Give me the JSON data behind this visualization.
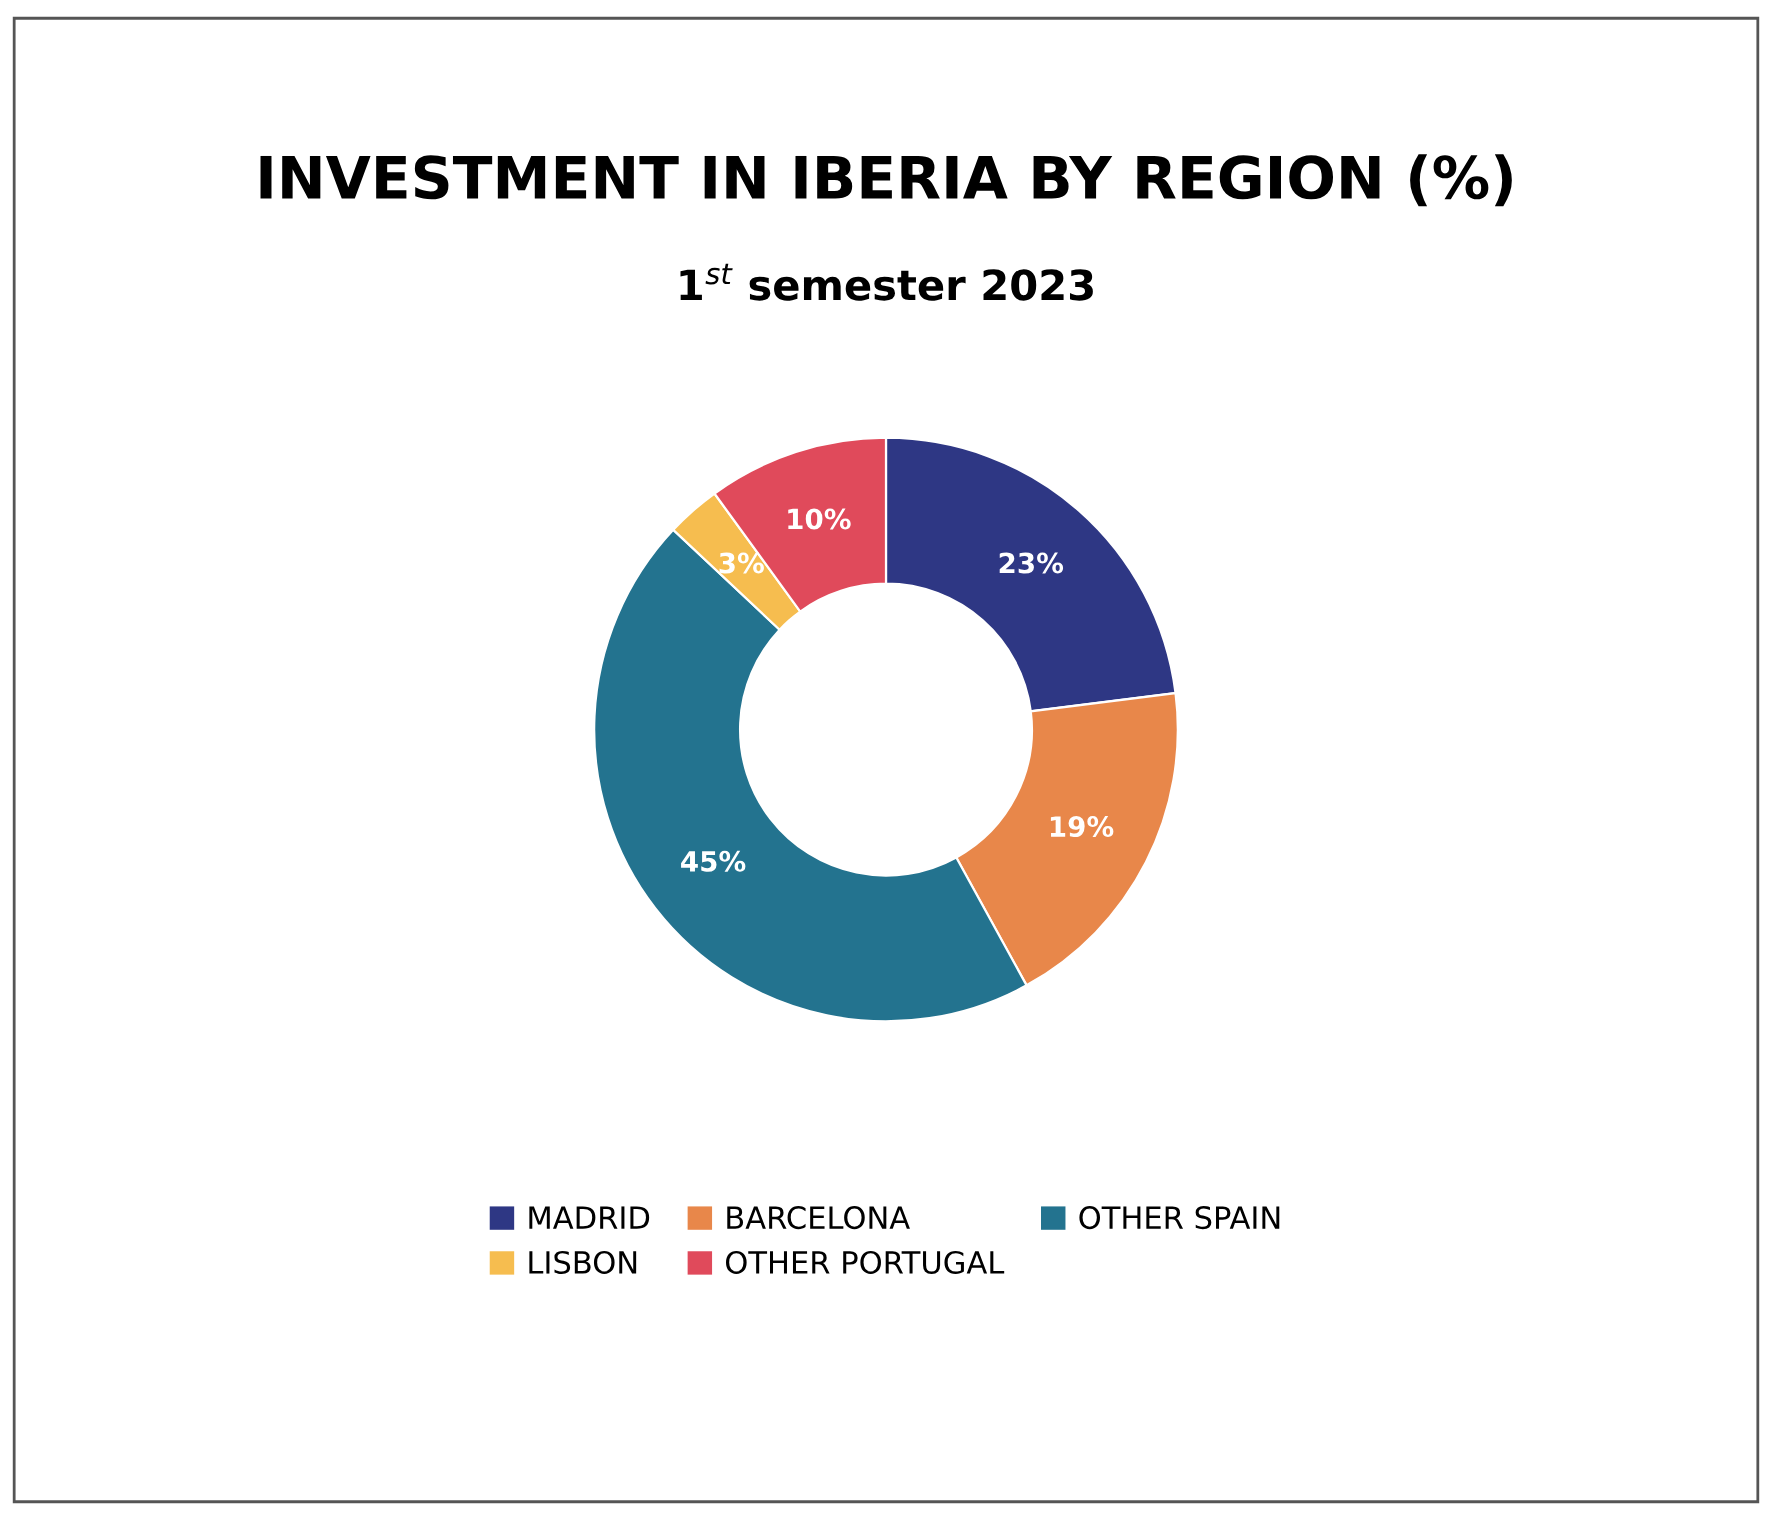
{
  "chart_data": {
    "type": "donut",
    "title": "INVESTMENT IN IBERIA BY REGION (%)",
    "subtitle": "1$^{st}$ semester 2023",
    "categories": [
      "MADRID",
      "BARCELONA",
      "OTHER SPAIN",
      "LISBON",
      "OTHER PORTUGAL"
    ],
    "values": [
      23,
      19,
      45,
      3,
      10
    ],
    "colors": [
      "#2e3784",
      "#e8874a",
      "#23738f",
      "#f6bd4f",
      "#e04a5b"
    ],
    "value_labels": [
      "23%",
      "19%",
      "45%",
      "3%",
      "10%"
    ],
    "legend": "bottom"
  }
}
